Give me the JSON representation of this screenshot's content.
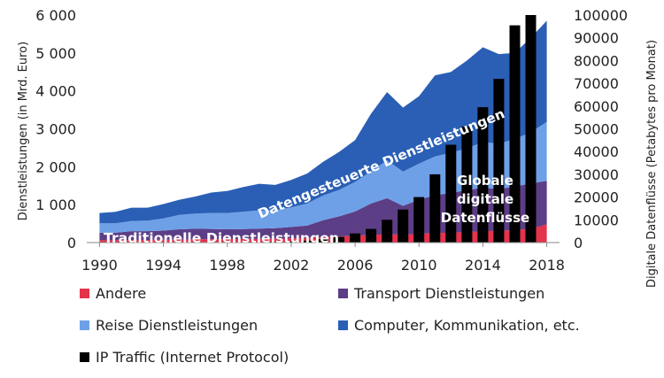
{
  "chart_data": {
    "type": "area",
    "x": [
      1990,
      1991,
      1992,
      1993,
      1994,
      1995,
      1996,
      1997,
      1998,
      1999,
      2000,
      2001,
      2002,
      2003,
      2004,
      2005,
      2006,
      2007,
      2008,
      2009,
      2010,
      2011,
      2012,
      2013,
      2014,
      2015,
      2016,
      2017,
      2018
    ],
    "xticks": [
      1990,
      1994,
      1998,
      2002,
      2006,
      2010,
      2014,
      2018
    ],
    "ylabel": "Dienstleistungen (in Mrd. Euro)",
    "ylim": [
      0,
      6000
    ],
    "yticks": [
      "0",
      "1 000",
      "2 000",
      "3 000",
      "4 000",
      "5 000",
      "6 000"
    ],
    "y2label": "Digitale Datenflüsse (Petabytes pro Monat)",
    "y2lim": [
      0,
      100000
    ],
    "y2ticks": [
      "0",
      "10000",
      "20000",
      "30000",
      "40000",
      "50000",
      "60000",
      "70000",
      "80000",
      "90000",
      "100000"
    ],
    "series": [
      {
        "name": "Andere",
        "color": "#e5334b",
        "values": [
          60,
          60,
          70,
          70,
          75,
          80,
          85,
          90,
          90,
          95,
          100,
          100,
          110,
          120,
          140,
          160,
          180,
          200,
          220,
          210,
          230,
          250,
          260,
          280,
          300,
          310,
          330,
          360,
          480
        ]
      },
      {
        "name": "Transport Dienstleistungen",
        "color": "#5c3e86",
        "values": [
          200,
          200,
          230,
          230,
          240,
          270,
          280,
          270,
          260,
          260,
          270,
          280,
          300,
          330,
          450,
          530,
          640,
          830,
          950,
          760,
          900,
          1000,
          1050,
          1100,
          1150,
          1100,
          1150,
          1200,
          1150
        ]
      },
      {
        "name": "Reise Dienstleistungen",
        "color": "#6ea0e8",
        "values": [
          250,
          250,
          270,
          280,
          320,
          380,
          400,
          420,
          430,
          460,
          480,
          480,
          520,
          580,
          650,
          700,
          780,
          850,
          1000,
          900,
          950,
          1020,
          1060,
          1100,
          1200,
          1200,
          1250,
          1350,
          1550
        ]
      },
      {
        "name": "Computer, Kommunikation, etc.",
        "color": "#2a5fb5",
        "values": [
          270,
          300,
          350,
          340,
          380,
          400,
          450,
          540,
          580,
          650,
          700,
          660,
          720,
          790,
          890,
          1000,
          1100,
          1520,
          1800,
          1690,
          1780,
          2140,
          2130,
          2320,
          2500,
          2360,
          2270,
          2490,
          2670
        ]
      }
    ],
    "bars": {
      "name": "IP Traffic (Internet Protocol)",
      "color": "#000000",
      "x": [
        1998,
        1999,
        2000,
        2001,
        2002,
        2003,
        2004,
        2005,
        2006,
        2007,
        2008,
        2009,
        2010,
        2011,
        2012,
        2013,
        2014,
        2015,
        2016,
        2017
      ],
      "values": [
        50,
        100,
        200,
        300,
        500,
        800,
        1500,
        2500,
        4000,
        6000,
        10000,
        14500,
        20000,
        30000,
        43000,
        51000,
        59500,
        72000,
        95500,
        100000
      ]
    },
    "annotations": [
      {
        "text": "Traditionelle Dienstleistungen"
      },
      {
        "text": "Datengesteuerte Dienstleistungen"
      },
      {
        "lines": [
          "Globale",
          "digitale",
          "Datenflüsse"
        ]
      }
    ],
    "legend_position": "bottom"
  },
  "legend": {
    "items": [
      {
        "label": "Andere",
        "color": "#e5334b"
      },
      {
        "label": "Transport Dienstleistungen",
        "color": "#5c3e86"
      },
      {
        "label": "Reise Dienstleistungen",
        "color": "#6ea0e8"
      },
      {
        "label": "Computer, Kommunikation, etc.",
        "color": "#2a5fb5"
      },
      {
        "label": "IP Traffic (Internet Protocol)",
        "color": "#000000"
      }
    ]
  }
}
